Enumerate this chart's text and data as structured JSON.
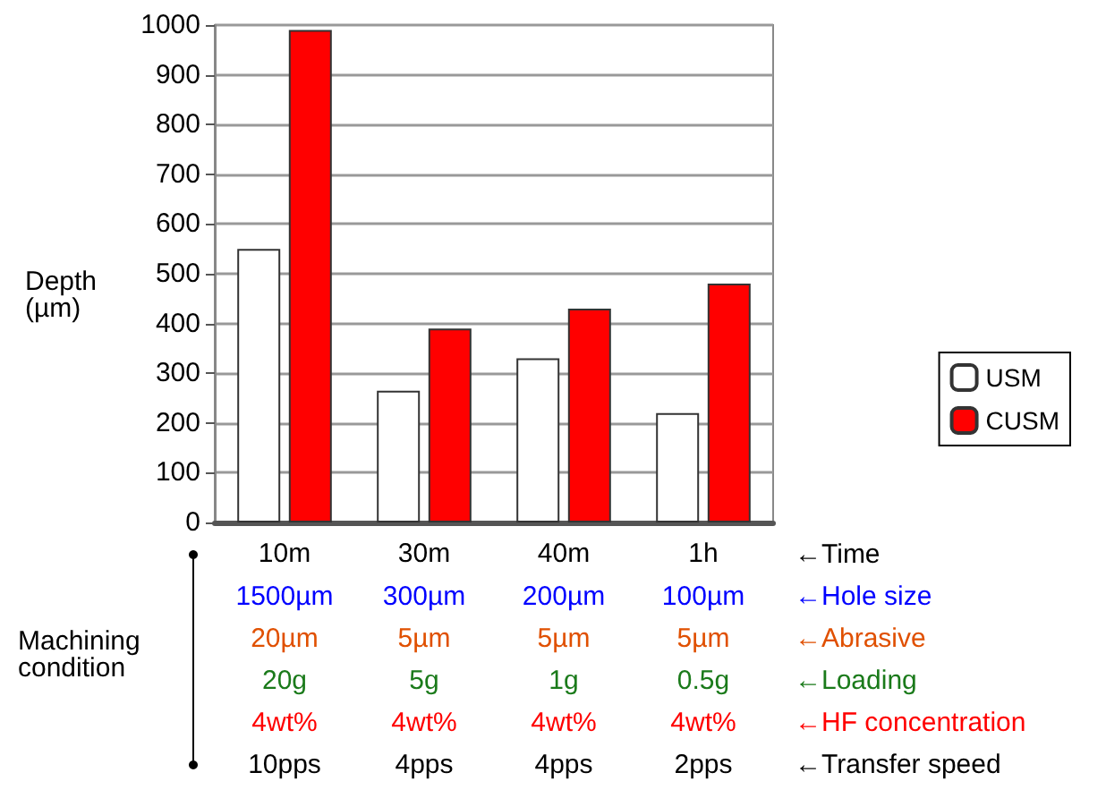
{
  "chart_data": {
    "type": "bar",
    "ylabel": "Depth (µm)",
    "categories": [
      "10m",
      "30m",
      "40m",
      "1h"
    ],
    "series": [
      {
        "name": "USM",
        "color": "#ffffff",
        "values": [
          550,
          265,
          330,
          220
        ]
      },
      {
        "name": "CUSM",
        "color": "#ff0000",
        "values": [
          990,
          390,
          430,
          480
        ]
      }
    ],
    "ylim": [
      0,
      1000
    ],
    "yticks": [
      0,
      100,
      200,
      300,
      400,
      500,
      600,
      700,
      800,
      900,
      1000
    ],
    "grid": "y",
    "legend": "right",
    "annotations": [
      "Machining condition",
      "←Time",
      "1500µm",
      "300µm",
      "200µm",
      "100µm",
      "←Hole size",
      "20µm",
      "5µm",
      "5µm",
      "5µm",
      "←Abrasive",
      "20g",
      "5g",
      "1g",
      "0.5g",
      "←Loading",
      "4wt%",
      "4wt%",
      "4wt%",
      "4wt%",
      "←HF concentration",
      "10pps",
      "4pps",
      "4pps",
      "2pps",
      "←Transfer speed"
    ]
  }
}
